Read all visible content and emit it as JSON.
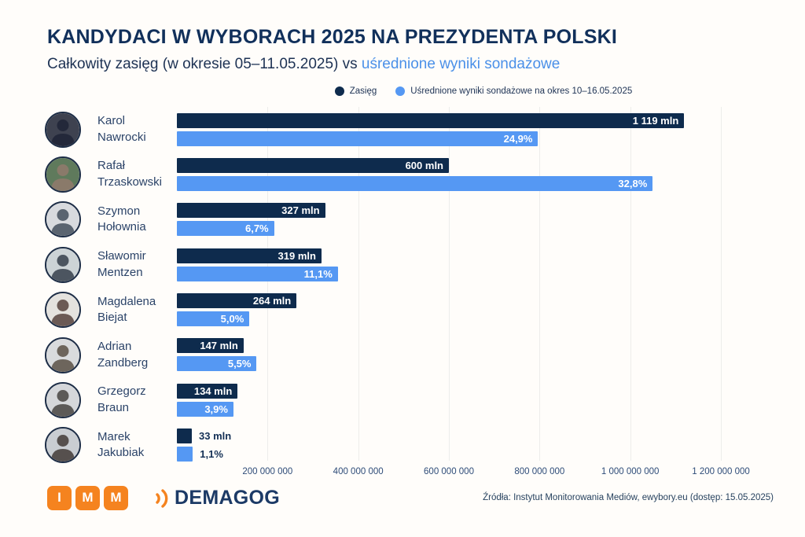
{
  "header": {
    "title": "KANDYDACI W WYBORACH 2025 NA PREZYDENTA POLSKI",
    "subtitle_prefix": "Całkowity zasięg (w okresie 05–11.05.2025) vs ",
    "subtitle_highlight": "uśrednione wyniki sondażowe"
  },
  "legend": {
    "items": [
      {
        "label": "Zasięg",
        "color": "#0e2b4d"
      },
      {
        "label": "Uśrednione wyniki sondażowe na okres 10–16.05.2025",
        "color": "#5598f3"
      }
    ]
  },
  "chart_data": {
    "type": "bar",
    "orientation": "horizontal",
    "title": "KANDYDACI W WYBORACH 2025 NA PREZYDENTA POLSKI",
    "subtitle": "Całkowity zasięg (w okresie 05–11.05.2025) vs uśrednione wyniki sondażowe",
    "legend_position": "top",
    "grid": true,
    "x_axis_max": 1200000000,
    "pct_scale_max": 37.5,
    "x_ticks": [
      "200 000 000",
      "400 000 000",
      "600 000 000",
      "800 000 000",
      "1 000 000 000",
      "1 200 000 000"
    ],
    "series": [
      {
        "name": "Zasięg",
        "unit": "mln",
        "color": "#0e2b4d"
      },
      {
        "name": "Uśrednione wyniki sondażowe na okres 10–16.05.2025",
        "unit": "%",
        "color": "#5598f3"
      }
    ],
    "candidates": [
      {
        "name_line1": "Karol",
        "name_line2": "Nawrocki",
        "reach_mln": 1119,
        "reach_label": "1 119 mln",
        "poll_pct": 24.9,
        "poll_label": "24,9%"
      },
      {
        "name_line1": "Rafał",
        "name_line2": "Trzaskowski",
        "reach_mln": 600,
        "reach_label": "600 mln",
        "poll_pct": 32.8,
        "poll_label": "32,8%"
      },
      {
        "name_line1": "Szymon",
        "name_line2": "Hołownia",
        "reach_mln": 327,
        "reach_label": "327 mln",
        "poll_pct": 6.7,
        "poll_label": "6,7%"
      },
      {
        "name_line1": "Sławomir",
        "name_line2": "Mentzen",
        "reach_mln": 319,
        "reach_label": "319 mln",
        "poll_pct": 11.1,
        "poll_label": "11,1%"
      },
      {
        "name_line1": "Magdalena",
        "name_line2": "Biejat",
        "reach_mln": 264,
        "reach_label": "264 mln",
        "poll_pct": 5.0,
        "poll_label": "5,0%"
      },
      {
        "name_line1": "Adrian",
        "name_line2": "Zandberg",
        "reach_mln": 147,
        "reach_label": "147 mln",
        "poll_pct": 5.5,
        "poll_label": "5,5%"
      },
      {
        "name_line1": "Grzegorz",
        "name_line2": "Braun",
        "reach_mln": 134,
        "reach_label": "134 mln",
        "poll_pct": 3.9,
        "poll_label": "3,9%"
      },
      {
        "name_line1": "Marek",
        "name_line2": "Jakubiak",
        "reach_mln": 33,
        "reach_label": "33 mln",
        "poll_pct": 1.1,
        "poll_label": "1,1%"
      }
    ]
  },
  "footer": {
    "imm_letters": [
      "I",
      "M",
      "M"
    ],
    "demagog_text": "DEMAGOG",
    "source": "Źródła: Instytut Monitorowania Mediów, ewybory.eu (dostęp: 15.05.2025)"
  }
}
